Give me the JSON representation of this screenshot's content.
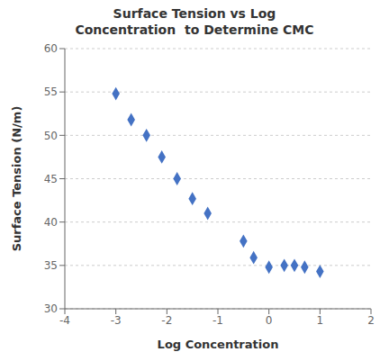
{
  "chart_data": {
    "type": "scatter",
    "title": "Surface Tension vs Log\nConcentration  to Determine CMC",
    "xlabel": "Log Concentration",
    "ylabel": "Surface Tension (N/m)",
    "x": [
      -3.0,
      -2.7,
      -2.4,
      -2.1,
      -1.8,
      -1.5,
      -1.2,
      -0.5,
      -0.3,
      0.0,
      0.3,
      0.5,
      0.7,
      1.0
    ],
    "y": [
      54.8,
      51.8,
      50.0,
      47.5,
      45.0,
      42.7,
      41.0,
      37.8,
      35.9,
      34.8,
      35.0,
      35.0,
      34.8,
      34.3
    ],
    "color": "#4472C4",
    "marker": "diamond",
    "xlim": [
      -4,
      2
    ],
    "ylim": [
      30,
      60
    ],
    "xticks": [
      -4,
      -3,
      -2,
      -1,
      0,
      1,
      2
    ],
    "yticks": [
      30,
      35,
      40,
      45,
      50,
      55,
      60
    ],
    "grid": "y"
  }
}
